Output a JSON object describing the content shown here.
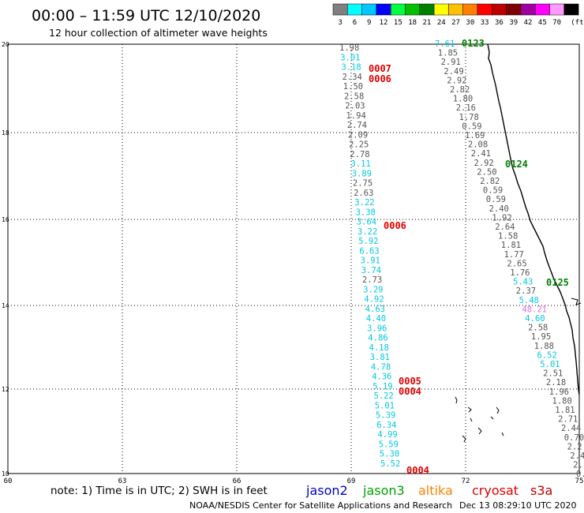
{
  "header": {
    "title": "00:00 – 11:59 UTC 12/10/2020",
    "subtitle": "12 hour collection of altimeter wave heights"
  },
  "legend": {
    "unit": "(ft)",
    "bins": [
      {
        "label": "3",
        "color": "#7f7f7f"
      },
      {
        "label": "6",
        "color": "#00ffff"
      },
      {
        "label": "9",
        "color": "#00c8ff"
      },
      {
        "label": "12",
        "color": "#0000ff"
      },
      {
        "label": "15",
        "color": "#00ff40"
      },
      {
        "label": "18",
        "color": "#00c000"
      },
      {
        "label": "21",
        "color": "#008000"
      },
      {
        "label": "24",
        "color": "#ffff00"
      },
      {
        "label": "27",
        "color": "#ffc000"
      },
      {
        "label": "30",
        "color": "#ff8000"
      },
      {
        "label": "33",
        "color": "#ff0000"
      },
      {
        "label": "36",
        "color": "#c00000"
      },
      {
        "label": "39",
        "color": "#800000"
      },
      {
        "label": "42",
        "color": "#a000a0"
      },
      {
        "label": "45",
        "color": "#ff00ff"
      },
      {
        "label": "70",
        "color": "#ff99ff"
      },
      {
        "label": "",
        "color": "#000000"
      }
    ]
  },
  "axes": {
    "x_ticks": [
      "60",
      "63",
      "66",
      "69",
      "72",
      "75"
    ],
    "y_ticks": [
      "20",
      "18",
      "16",
      "14",
      "12",
      "10"
    ]
  },
  "colors": {
    "gray": "#555555",
    "cyan": "#00c8e0",
    "red": "#e00000",
    "green": "#008000",
    "pink": "#e070e0"
  },
  "track_west": [
    {
      "v": "1.98",
      "c": "gray"
    },
    {
      "v": "3.01",
      "c": "cyan"
    },
    {
      "v": "3.18",
      "c": "cyan"
    },
    {
      "v": "2.34",
      "c": "gray"
    },
    {
      "v": "1.50",
      "c": "gray"
    },
    {
      "v": "2.58",
      "c": "gray"
    },
    {
      "v": "2.03",
      "c": "gray"
    },
    {
      "v": "1.94",
      "c": "gray"
    },
    {
      "v": "2.74",
      "c": "gray"
    },
    {
      "v": "2.09",
      "c": "gray"
    },
    {
      "v": "2.25",
      "c": "gray"
    },
    {
      "v": "2.78",
      "c": "gray"
    },
    {
      "v": "3.11",
      "c": "cyan"
    },
    {
      "v": "3.89",
      "c": "cyan"
    },
    {
      "v": "2.75",
      "c": "gray"
    },
    {
      "v": "2.63",
      "c": "gray"
    },
    {
      "v": "3.22",
      "c": "cyan"
    },
    {
      "v": "3.38",
      "c": "cyan"
    },
    {
      "v": "3.64",
      "c": "cyan"
    },
    {
      "v": "3.22",
      "c": "cyan"
    },
    {
      "v": "5.92",
      "c": "cyan"
    },
    {
      "v": "6.63",
      "c": "cyan"
    },
    {
      "v": "3.91",
      "c": "cyan"
    },
    {
      "v": "3.74",
      "c": "cyan"
    },
    {
      "v": "2.73",
      "c": "gray"
    },
    {
      "v": "3.29",
      "c": "cyan"
    },
    {
      "v": "4.92",
      "c": "cyan"
    },
    {
      "v": "4.63",
      "c": "cyan"
    },
    {
      "v": "4.40",
      "c": "cyan"
    },
    {
      "v": "3.96",
      "c": "cyan"
    },
    {
      "v": "4.86",
      "c": "cyan"
    },
    {
      "v": "4.18",
      "c": "cyan"
    },
    {
      "v": "3.81",
      "c": "cyan"
    },
    {
      "v": "4.78",
      "c": "cyan"
    },
    {
      "v": "4.36",
      "c": "cyan"
    },
    {
      "v": "5.19",
      "c": "cyan"
    },
    {
      "v": "5.22",
      "c": "cyan"
    },
    {
      "v": "5.01",
      "c": "cyan"
    },
    {
      "v": "5.39",
      "c": "cyan"
    },
    {
      "v": "6.34",
      "c": "cyan"
    },
    {
      "v": "4.99",
      "c": "cyan"
    },
    {
      "v": "5.59",
      "c": "cyan"
    },
    {
      "v": "5.30",
      "c": "cyan"
    },
    {
      "v": "5.52",
      "c": "cyan"
    }
  ],
  "track_east": [
    {
      "v": "7.61",
      "c": "cyan"
    },
    {
      "v": "1.85",
      "c": "gray"
    },
    {
      "v": "2.91",
      "c": "gray"
    },
    {
      "v": "2.49",
      "c": "gray"
    },
    {
      "v": "2.92",
      "c": "gray"
    },
    {
      "v": "2.82",
      "c": "gray"
    },
    {
      "v": "1.80",
      "c": "gray"
    },
    {
      "v": "2.16",
      "c": "gray"
    },
    {
      "v": "1.78",
      "c": "gray"
    },
    {
      "v": "0.59",
      "c": "gray"
    },
    {
      "v": "1.69",
      "c": "gray"
    },
    {
      "v": "2.08",
      "c": "gray"
    },
    {
      "v": "2.41",
      "c": "gray"
    },
    {
      "v": "2.92",
      "c": "gray"
    },
    {
      "v": "2.50",
      "c": "gray"
    },
    {
      "v": "2.82",
      "c": "gray"
    },
    {
      "v": "0.59",
      "c": "gray"
    },
    {
      "v": "0.59",
      "c": "gray"
    },
    {
      "v": "2.40",
      "c": "gray"
    },
    {
      "v": "1.92",
      "c": "gray"
    },
    {
      "v": "2.64",
      "c": "gray"
    },
    {
      "v": "1.58",
      "c": "gray"
    },
    {
      "v": "1.81",
      "c": "gray"
    },
    {
      "v": "1.77",
      "c": "gray"
    },
    {
      "v": "2.65",
      "c": "gray"
    },
    {
      "v": "1.76",
      "c": "gray"
    },
    {
      "v": "5.43",
      "c": "cyan"
    },
    {
      "v": "2.37",
      "c": "gray"
    },
    {
      "v": "5.48",
      "c": "cyan"
    },
    {
      "v": "48.21",
      "c": "pink"
    },
    {
      "v": "4.60",
      "c": "cyan"
    },
    {
      "v": "2.58",
      "c": "gray"
    },
    {
      "v": "1.95",
      "c": "gray"
    },
    {
      "v": "1.88",
      "c": "gray"
    },
    {
      "v": "6.52",
      "c": "cyan"
    },
    {
      "v": "5.01",
      "c": "cyan"
    },
    {
      "v": "2.51",
      "c": "gray"
    },
    {
      "v": "2.18",
      "c": "gray"
    },
    {
      "v": "1.96",
      "c": "gray"
    },
    {
      "v": "1.80",
      "c": "gray"
    },
    {
      "v": "1.81",
      "c": "gray"
    },
    {
      "v": "2.71",
      "c": "gray"
    },
    {
      "v": "2.44",
      "c": "gray"
    },
    {
      "v": "0.70",
      "c": "gray"
    },
    {
      "v": "2.2",
      "c": "gray"
    },
    {
      "v": "2.4",
      "c": "gray"
    },
    {
      "v": "2.",
      "c": "gray"
    },
    {
      "v": "0.",
      "c": "gray"
    }
  ],
  "time_labels": [
    {
      "t": "0007",
      "c": "red"
    },
    {
      "t": "0006",
      "c": "red"
    },
    {
      "t": "0006",
      "c": "red"
    },
    {
      "t": "0005",
      "c": "red"
    },
    {
      "t": "0004",
      "c": "red"
    },
    {
      "t": "0004",
      "c": "red"
    },
    {
      "t": "0123",
      "c": "green"
    },
    {
      "t": "0124",
      "c": "green"
    },
    {
      "t": "0125",
      "c": "green"
    }
  ],
  "footer": {
    "note": "note: 1) Time is in UTC; 2) SWH is in feet",
    "credit": "NOAA/NESDIS Center for Satellite Applications and Research",
    "timestamp": "Dec 13 08:29:10 UTC 2020",
    "satellites": [
      {
        "name": "jason2",
        "color": "#0000c8"
      },
      {
        "name": "jason3",
        "color": "#00a000"
      },
      {
        "name": "altika",
        "color": "#ff8000"
      },
      {
        "name": "cryosat",
        "color": "#e00000"
      },
      {
        "name": "s3a",
        "color": "#c00000"
      }
    ]
  }
}
